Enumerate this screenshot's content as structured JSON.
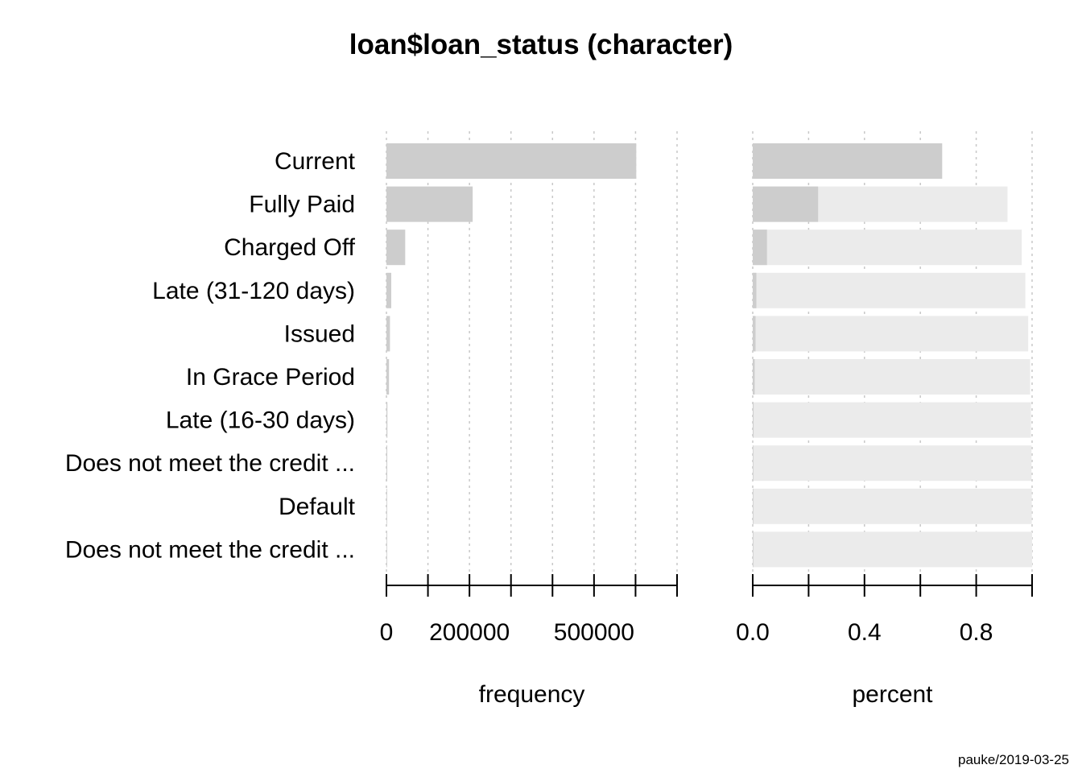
{
  "title": "loan$loan_status (character)",
  "credit": "pauke/2019-03-25",
  "colors": {
    "bar": "#cdcdcd",
    "bar_remainder": "#ebebeb",
    "grid": "#c8c8c8",
    "axis": "#000000"
  },
  "chart_data": {
    "type": "bar",
    "orientation": "horizontal",
    "categories": [
      "Current",
      "Fully Paid",
      "Charged Off",
      "Late (31-120 days)",
      "Issued",
      "In Grace Period",
      "Late (16-30 days)",
      "Does not meet the credit ...",
      "Default",
      "Does not meet the credit ..."
    ],
    "panels": [
      {
        "xlabel": "frequency",
        "values": [
          601779,
          207723,
          45248,
          11591,
          8460,
          6253,
          2357,
          1988,
          1219,
          761
        ],
        "xlim": [
          0,
          700000
        ],
        "ticks": [
          0,
          100000,
          200000,
          300000,
          400000,
          500000,
          600000,
          700000
        ],
        "tick_labels": [
          {
            "value": 0,
            "label": "0"
          },
          {
            "value": 200000,
            "label": "200000"
          },
          {
            "value": 500000,
            "label": "500000"
          }
        ]
      },
      {
        "xlabel": "percent",
        "values": [
          0.678,
          0.234,
          0.051,
          0.013,
          0.01,
          0.007,
          0.003,
          0.002,
          0.001,
          0.001
        ],
        "cumulative": [
          0.678,
          0.912,
          0.963,
          0.976,
          0.986,
          0.993,
          0.996,
          0.998,
          0.999,
          1.0
        ],
        "xlim": [
          0,
          1
        ],
        "ticks": [
          0,
          0.2,
          0.4,
          0.6,
          0.8,
          1.0
        ],
        "tick_labels": [
          {
            "value": 0,
            "label": "0.0"
          },
          {
            "value": 0.4,
            "label": "0.4"
          },
          {
            "value": 0.8,
            "label": "0.8"
          }
        ]
      }
    ],
    "grid": "vertical dotted"
  }
}
